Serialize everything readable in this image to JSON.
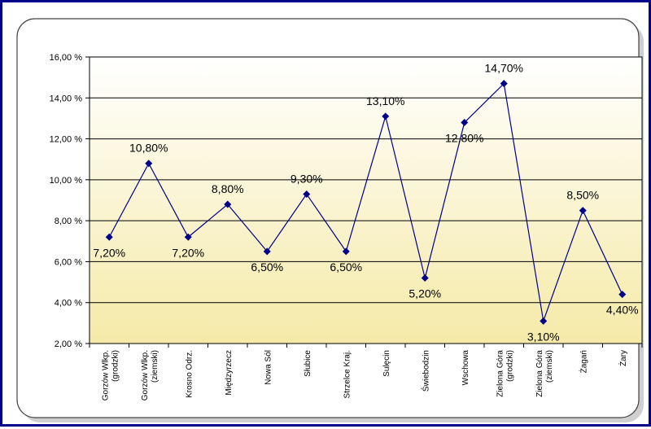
{
  "chart_data": {
    "type": "line",
    "title": "",
    "xlabel": "",
    "ylabel": "",
    "ylim": [
      2,
      16
    ],
    "y_ticks": [
      "2,00 %",
      "4,00 %",
      "6,00 %",
      "8,00 %",
      "10,00 %",
      "12,00 %",
      "14,00 %",
      "16,00 %"
    ],
    "y_tick_values": [
      2,
      4,
      6,
      8,
      10,
      12,
      14,
      16
    ],
    "grid": true,
    "legend": "none",
    "categories": [
      [
        "Gorzów Wlkp.",
        "(grodzki)"
      ],
      [
        "Gorzów Wlkp.",
        "(ziemski)"
      ],
      [
        "Krosno Odrz."
      ],
      [
        "Międzyrzecz"
      ],
      [
        "Nowa Sól"
      ],
      [
        "Słubice"
      ],
      [
        "Strzelce Kraj."
      ],
      [
        "Sulęcin"
      ],
      [
        "Świebodzin"
      ],
      [
        "Wschowa"
      ],
      [
        "Zielona Góra",
        "(grodzki)"
      ],
      [
        "Zielona Góra",
        "(ziemski)"
      ],
      [
        "Żagań"
      ],
      [
        "Żary"
      ]
    ],
    "values": [
      7.2,
      10.8,
      7.2,
      8.8,
      6.5,
      9.3,
      6.5,
      13.1,
      5.2,
      12.8,
      14.7,
      3.1,
      8.5,
      4.4
    ],
    "data_labels": [
      "7,20%",
      "10,80%",
      "7,20%",
      "8,80%",
      "6,50%",
      "9,30%",
      "6,50%",
      "13,10%",
      "5,20%",
      "12,80%",
      "14,70%",
      "3,10%",
      "8,50%",
      "4,40%"
    ],
    "colors": {
      "line": "#00008b",
      "marker": "#00008b",
      "plot_gradient_top": "#ffffff",
      "plot_gradient_bottom": "#f5eaa8",
      "panel": "#ffffff",
      "frame": "#00008b",
      "shadow": "#cfcfcf"
    }
  }
}
